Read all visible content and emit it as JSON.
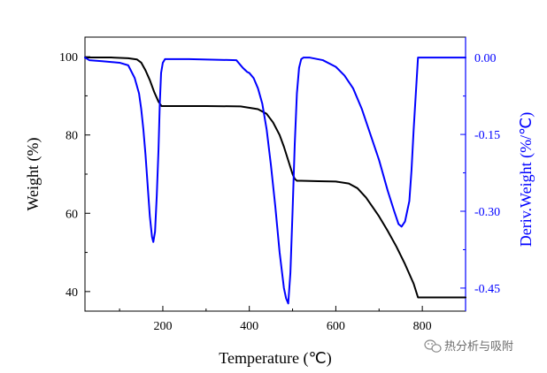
{
  "chart_data": {
    "type": "line",
    "title": "",
    "xlabel": "Temperature (℃)",
    "ylabel_left": "Weight (%)",
    "ylabel_right": "Deriv.Weight (%/℃)",
    "xlim": [
      20,
      900
    ],
    "ylim_left": [
      35,
      105
    ],
    "ylim_right": [
      -0.495,
      0.04
    ],
    "x_ticks": [
      200,
      400,
      600,
      800
    ],
    "y_left_ticks": [
      40,
      60,
      80,
      100
    ],
    "y_right_ticks": [
      0.0,
      -0.15,
      -0.3,
      -0.45
    ],
    "y_right_tick_labels": [
      "0.00",
      "-0.15",
      "-0.30",
      "-0.45"
    ],
    "grid": false,
    "legend": "none",
    "series": [
      {
        "axis": "left",
        "color": "#000000",
        "x": [
          20,
          80,
          120,
          140,
          150,
          160,
          170,
          180,
          190,
          197,
          205,
          300,
          380,
          420,
          440,
          455,
          470,
          480,
          490,
          500,
          505,
          510,
          520,
          560,
          600,
          630,
          650,
          670,
          690,
          700,
          720,
          740,
          760,
          780,
          790,
          900
        ],
        "y": [
          99.8,
          99.8,
          99.6,
          99.3,
          98.5,
          96.5,
          94,
          91,
          88.5,
          87.4,
          87.4,
          87.4,
          87.3,
          86.6,
          85.4,
          83.2,
          80,
          77,
          73.5,
          70,
          68.8,
          68.3,
          68.3,
          68.2,
          68.1,
          67.6,
          66.4,
          64,
          60.8,
          59.2,
          55.5,
          51.5,
          47,
          42,
          38.5,
          38.5
        ]
      },
      {
        "axis": "right",
        "color": "#0000ff",
        "x": [
          20,
          30,
          60,
          100,
          120,
          135,
          145,
          150,
          155,
          160,
          165,
          170,
          175,
          178,
          182,
          186,
          190,
          193,
          196,
          200,
          205,
          215,
          260,
          370,
          385,
          395,
          400,
          410,
          420,
          430,
          440,
          450,
          460,
          470,
          480,
          485,
          490,
          495,
          500,
          505,
          510,
          515,
          520,
          525,
          540,
          570,
          600,
          620,
          640,
          660,
          680,
          700,
          720,
          735,
          745,
          752,
          760,
          770,
          775,
          780,
          785,
          790,
          900
        ],
        "y": [
          0.0,
          -0.005,
          -0.007,
          -0.01,
          -0.015,
          -0.04,
          -0.07,
          -0.1,
          -0.14,
          -0.19,
          -0.25,
          -0.31,
          -0.35,
          -0.36,
          -0.34,
          -0.27,
          -0.18,
          -0.09,
          -0.03,
          -0.01,
          -0.003,
          -0.003,
          -0.003,
          -0.005,
          -0.02,
          -0.028,
          -0.03,
          -0.04,
          -0.06,
          -0.09,
          -0.14,
          -0.21,
          -0.29,
          -0.38,
          -0.45,
          -0.47,
          -0.48,
          -0.42,
          -0.3,
          -0.17,
          -0.07,
          -0.02,
          -0.003,
          0.0,
          0.0,
          -0.005,
          -0.018,
          -0.035,
          -0.06,
          -0.1,
          -0.15,
          -0.2,
          -0.26,
          -0.3,
          -0.325,
          -0.33,
          -0.32,
          -0.28,
          -0.22,
          -0.14,
          -0.07,
          0.0,
          0.0
        ]
      }
    ]
  },
  "watermark": {
    "text": "热分析与吸附"
  },
  "colors": {
    "weight_axis": "#000000",
    "deriv_axis": "#0000ff"
  }
}
